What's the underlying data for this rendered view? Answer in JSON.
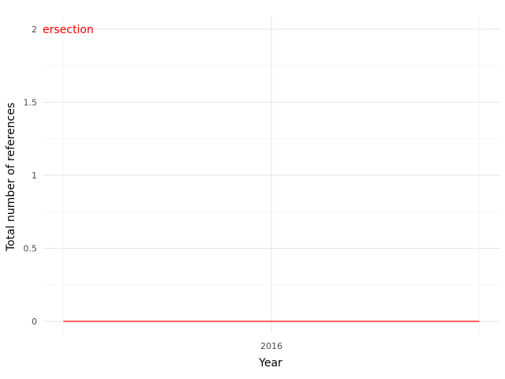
{
  "chart_data": {
    "type": "line",
    "title": "",
    "xlabel": "Year",
    "ylabel": "Total number of references",
    "x_ticks": [
      "2016"
    ],
    "y_ticks": [
      "0",
      "0.5",
      "1",
      "1.5",
      "2"
    ],
    "ylim": [
      0,
      2
    ],
    "grid": true,
    "series": [
      {
        "color": "#ff0000",
        "x": [
          2015.5,
          2016.5
        ],
        "y": [
          0,
          0
        ]
      }
    ],
    "annotations": [
      {
        "text": "ersection",
        "x": 2015.5,
        "y": 2,
        "color": "#ff0000"
      }
    ]
  }
}
